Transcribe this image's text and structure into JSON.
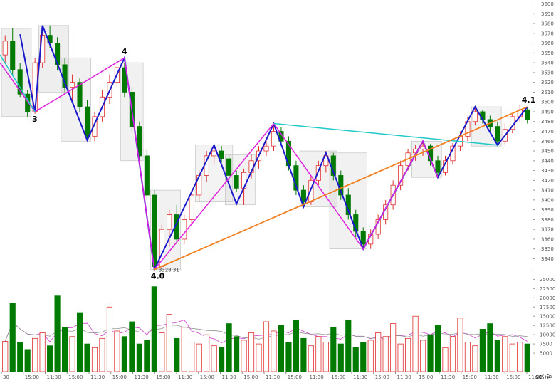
{
  "chart_data": {
    "type": "candlestick",
    "price_axis": {
      "range": [
        3328,
        3604
      ],
      "ticks": [
        3340,
        3350,
        3360,
        3370,
        3380,
        3390,
        3400,
        3410,
        3420,
        3430,
        3440,
        3450,
        3460,
        3470,
        3480,
        3490,
        3500,
        3510,
        3520,
        3530,
        3540,
        3550,
        3560,
        3570,
        3580,
        3590,
        3600
      ]
    },
    "volume_axis": {
      "range": [
        0,
        27000
      ],
      "ticks": [
        5000,
        7500,
        10000,
        12500,
        15000,
        17500,
        20000,
        22500,
        25000
      ]
    },
    "x_labels": [
      "30",
      "15:00",
      "11:30",
      "15:00",
      "11:30",
      "15:00",
      "11:30",
      "15:00",
      "11:30",
      "15:00",
      "11:30",
      "15:00",
      "11:30",
      "15:00",
      "11:30",
      "15:00",
      "11:30",
      "15:00",
      "11:30",
      "15:00",
      "11:30",
      "15:00",
      "11:30",
      "15:00",
      "11:30"
    ],
    "period_label": "60分钟",
    "candles": [
      [
        3548,
        3568,
        3540,
        3562
      ],
      [
        3562,
        3575,
        3528,
        3533
      ],
      [
        3533,
        3540,
        3505,
        3508
      ],
      [
        3508,
        3512,
        3485,
        3490
      ],
      [
        3490,
        3545,
        3488,
        3540
      ],
      [
        3540,
        3572,
        3535,
        3568
      ],
      [
        3568,
        3578,
        3555,
        3560
      ],
      [
        3560,
        3566,
        3532,
        3538
      ],
      [
        3538,
        3545,
        3510,
        3515
      ],
      [
        3515,
        3528,
        3500,
        3520
      ],
      [
        3520,
        3524,
        3490,
        3495
      ],
      [
        3495,
        3502,
        3460,
        3465
      ],
      [
        3465,
        3490,
        3460,
        3485
      ],
      [
        3485,
        3512,
        3480,
        3505
      ],
      [
        3505,
        3528,
        3498,
        3520
      ],
      [
        3520,
        3545,
        3515,
        3535
      ],
      [
        3535,
        3540,
        3505,
        3510
      ],
      [
        3510,
        3515,
        3470,
        3475
      ],
      [
        3475,
        3480,
        3440,
        3445
      ],
      [
        3445,
        3452,
        3400,
        3405
      ],
      [
        3405,
        3410,
        3329,
        3332
      ],
      [
        3332,
        3375,
        3330,
        3370
      ],
      [
        3370,
        3390,
        3352,
        3385
      ],
      [
        3385,
        3395,
        3355,
        3360
      ],
      [
        3360,
        3385,
        3355,
        3380
      ],
      [
        3380,
        3410,
        3375,
        3405
      ],
      [
        3405,
        3430,
        3398,
        3425
      ],
      [
        3425,
        3450,
        3418,
        3445
      ],
      [
        3445,
        3456,
        3436,
        3450
      ],
      [
        3450,
        3455,
        3438,
        3442
      ],
      [
        3442,
        3446,
        3420,
        3425
      ],
      [
        3425,
        3430,
        3408,
        3412
      ],
      [
        3412,
        3432,
        3395,
        3428
      ],
      [
        3428,
        3446,
        3422,
        3440
      ],
      [
        3440,
        3455,
        3432,
        3450
      ],
      [
        3450,
        3460,
        3445,
        3455
      ],
      [
        3455,
        3478,
        3450,
        3470
      ],
      [
        3470,
        3474,
        3455,
        3460
      ],
      [
        3460,
        3465,
        3430,
        3435
      ],
      [
        3435,
        3440,
        3405,
        3410
      ],
      [
        3410,
        3415,
        3393,
        3398
      ],
      [
        3398,
        3425,
        3395,
        3420
      ],
      [
        3420,
        3440,
        3415,
        3435
      ],
      [
        3435,
        3450,
        3428,
        3445
      ],
      [
        3445,
        3448,
        3420,
        3425
      ],
      [
        3425,
        3430,
        3400,
        3405
      ],
      [
        3405,
        3412,
        3380,
        3385
      ],
      [
        3385,
        3390,
        3362,
        3368
      ],
      [
        3368,
        3372,
        3350,
        3355
      ],
      [
        3355,
        3370,
        3350,
        3365
      ],
      [
        3365,
        3385,
        3360,
        3380
      ],
      [
        3380,
        3400,
        3375,
        3395
      ],
      [
        3395,
        3420,
        3390,
        3415
      ],
      [
        3415,
        3440,
        3410,
        3435
      ],
      [
        3435,
        3452,
        3430,
        3448
      ],
      [
        3448,
        3456,
        3440,
        3452
      ],
      [
        3452,
        3460,
        3445,
        3455
      ],
      [
        3455,
        3457,
        3435,
        3440
      ],
      [
        3440,
        3445,
        3423,
        3428
      ],
      [
        3428,
        3445,
        3425,
        3440
      ],
      [
        3440,
        3458,
        3436,
        3455
      ],
      [
        3455,
        3470,
        3450,
        3465
      ],
      [
        3465,
        3485,
        3460,
        3480
      ],
      [
        3480,
        3495,
        3476,
        3490
      ],
      [
        3490,
        3492,
        3478,
        3482
      ],
      [
        3482,
        3486,
        3470,
        3475
      ],
      [
        3475,
        3480,
        3455,
        3460
      ],
      [
        3460,
        3478,
        3456,
        3472
      ],
      [
        3472,
        3488,
        3468,
        3485
      ],
      [
        3485,
        3497,
        3480,
        3492
      ],
      [
        3492,
        3494,
        3478,
        3482
      ]
    ],
    "volumes": [
      8200,
      18500,
      8000,
      6000,
      9000,
      10500,
      7000,
      20500,
      12000,
      9500,
      16000,
      7500,
      6500,
      9000,
      17500,
      11000,
      9500,
      13500,
      7500,
      8500,
      23000,
      10500,
      15500,
      9000,
      12000,
      8000,
      7500,
      10000,
      7000,
      6500,
      13000,
      9500,
      8500,
      10500,
      7500,
      13500,
      11000,
      12500,
      8000,
      14000,
      9000,
      7000,
      9500,
      8000,
      12000,
      7500,
      14000,
      6500,
      8000,
      8500,
      10500,
      9500,
      13000,
      7500,
      9000,
      15000,
      8500,
      10000,
      12500,
      6500,
      9500,
      14500,
      8000,
      7000,
      11500,
      13000,
      8500,
      9500,
      7500,
      8000,
      7500
    ],
    "pivots": [
      {
        "i": 2,
        "p": 3569
      },
      {
        "i": 4,
        "p": 3490
      },
      {
        "i": 5,
        "p": 3578
      },
      {
        "i": 11,
        "p": 3461
      },
      {
        "i": 16,
        "p": 3545
      },
      {
        "i": 20,
        "p": 3329
      },
      {
        "i": 28,
        "p": 3456
      },
      {
        "i": 31,
        "p": 3396
      },
      {
        "i": 36,
        "p": 3478
      },
      {
        "i": 40,
        "p": 3393
      },
      {
        "i": 43,
        "p": 3448
      },
      {
        "i": 48,
        "p": 3350
      },
      {
        "i": 56,
        "p": 3460
      },
      {
        "i": 58,
        "p": 3423
      },
      {
        "i": 63,
        "p": 3495
      },
      {
        "i": 66,
        "p": 3456
      },
      {
        "i": 70,
        "p": 3495
      }
    ],
    "wave_labels": [
      "3",
      "4",
      "4.0",
      "4.1"
    ],
    "low_value_label": "3328.31"
  }
}
